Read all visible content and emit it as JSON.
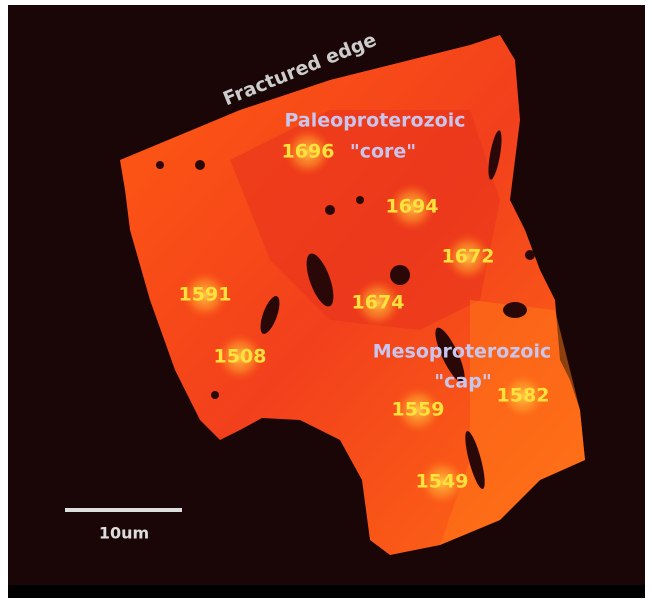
{
  "annotations": {
    "edge": "Fractured edge",
    "paleo": "Paleoproterozoic",
    "core": "\"core\"",
    "meso": "Mesoproterozoic",
    "cap": "\"cap\""
  },
  "ages": [
    1696,
    1694,
    1672,
    1591,
    1674,
    1508,
    1559,
    1582,
    1549
  ],
  "scale_bar": "10um"
}
